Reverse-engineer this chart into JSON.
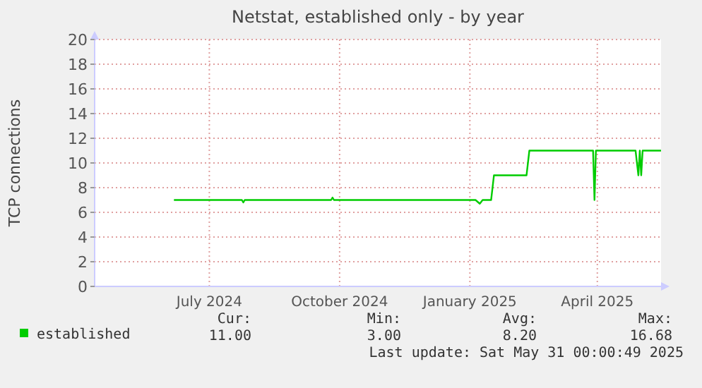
{
  "chart_data": {
    "type": "line",
    "title": "Netstat, established only - by year",
    "ylabel": "TCP connections",
    "xlim": [
      "2024-04-26",
      "2025-05-31"
    ],
    "xticks": [
      {
        "value": "2024-07-16",
        "label": "July 2024"
      },
      {
        "value": "2024-10-16",
        "label": "October 2024"
      },
      {
        "value": "2025-01-16",
        "label": "January 2025"
      },
      {
        "value": "2025-04-16",
        "label": "April 2025"
      }
    ],
    "ylim": [
      0,
      20
    ],
    "yticks": [
      0,
      2,
      4,
      6,
      8,
      10,
      12,
      14,
      16,
      18,
      20
    ],
    "grid": true,
    "legend": "bottom",
    "marker": "none",
    "line_style": "solid",
    "series": [
      {
        "name": "established",
        "color": "#00cc00",
        "x": [
          "2024-06-21",
          "2024-08-08",
          "2024-08-09",
          "2024-08-10",
          "2024-10-10",
          "2024-10-11",
          "2024-10-12",
          "2025-01-20",
          "2025-01-23",
          "2025-01-25",
          "2025-01-31",
          "2025-02-02",
          "2025-02-25",
          "2025-02-27",
          "2025-04-13",
          "2025-04-14",
          "2025-04-15",
          "2025-05-13",
          "2025-05-15",
          "2025-05-16",
          "2025-05-17",
          "2025-05-18",
          "2025-05-31"
        ],
        "values": [
          7,
          7,
          6.8,
          7,
          7,
          7.2,
          7,
          7,
          6.7,
          7,
          7,
          9,
          9,
          11,
          11,
          7,
          11,
          11,
          9,
          11,
          9,
          11,
          11
        ]
      }
    ],
    "annotations": [
      "Cur:",
      "11.00",
      "Min:",
      "3.00",
      "Avg:",
      "8.20",
      "Max:",
      "16.68",
      "Last update: Sat May 31 00:00:49 2025"
    ]
  }
}
